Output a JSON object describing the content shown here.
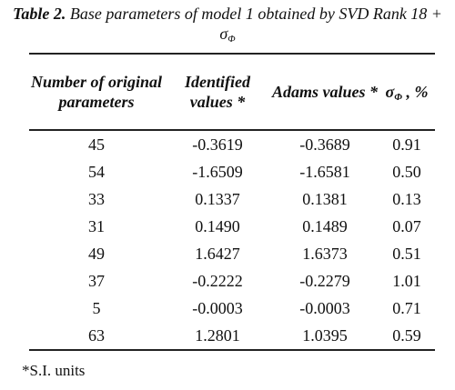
{
  "caption": {
    "label": "Table 2.",
    "text": "Base parameters of model 1 obtained by SVD Rank 18 + σ",
    "subscript": "Φ"
  },
  "table": {
    "header": [
      {
        "text": "Number of original parameters"
      },
      {
        "text": "Identified values *"
      },
      {
        "text": "Adams values *"
      },
      {
        "text": "σ",
        "subscript": "Φ",
        "suffix": " , %"
      }
    ],
    "rows": [
      [
        "45",
        "-0.3619",
        "-0.3689",
        "0.91"
      ],
      [
        "54",
        "-1.6509",
        "-1.6581",
        "0.50"
      ],
      [
        "33",
        "0.1337",
        "0.1381",
        "0.13"
      ],
      [
        "31",
        "0.1490",
        "0.1489",
        "0.07"
      ],
      [
        "49",
        "1.6427",
        "1.6373",
        "0.51"
      ],
      [
        "37",
        "-0.2222",
        "-0.2279",
        "1.01"
      ],
      [
        "5",
        "-0.0003",
        "-0.0003",
        "0.71"
      ],
      [
        "63",
        "1.2801",
        "1.0395",
        "0.59"
      ]
    ]
  },
  "footnote": "*S.I. units"
}
